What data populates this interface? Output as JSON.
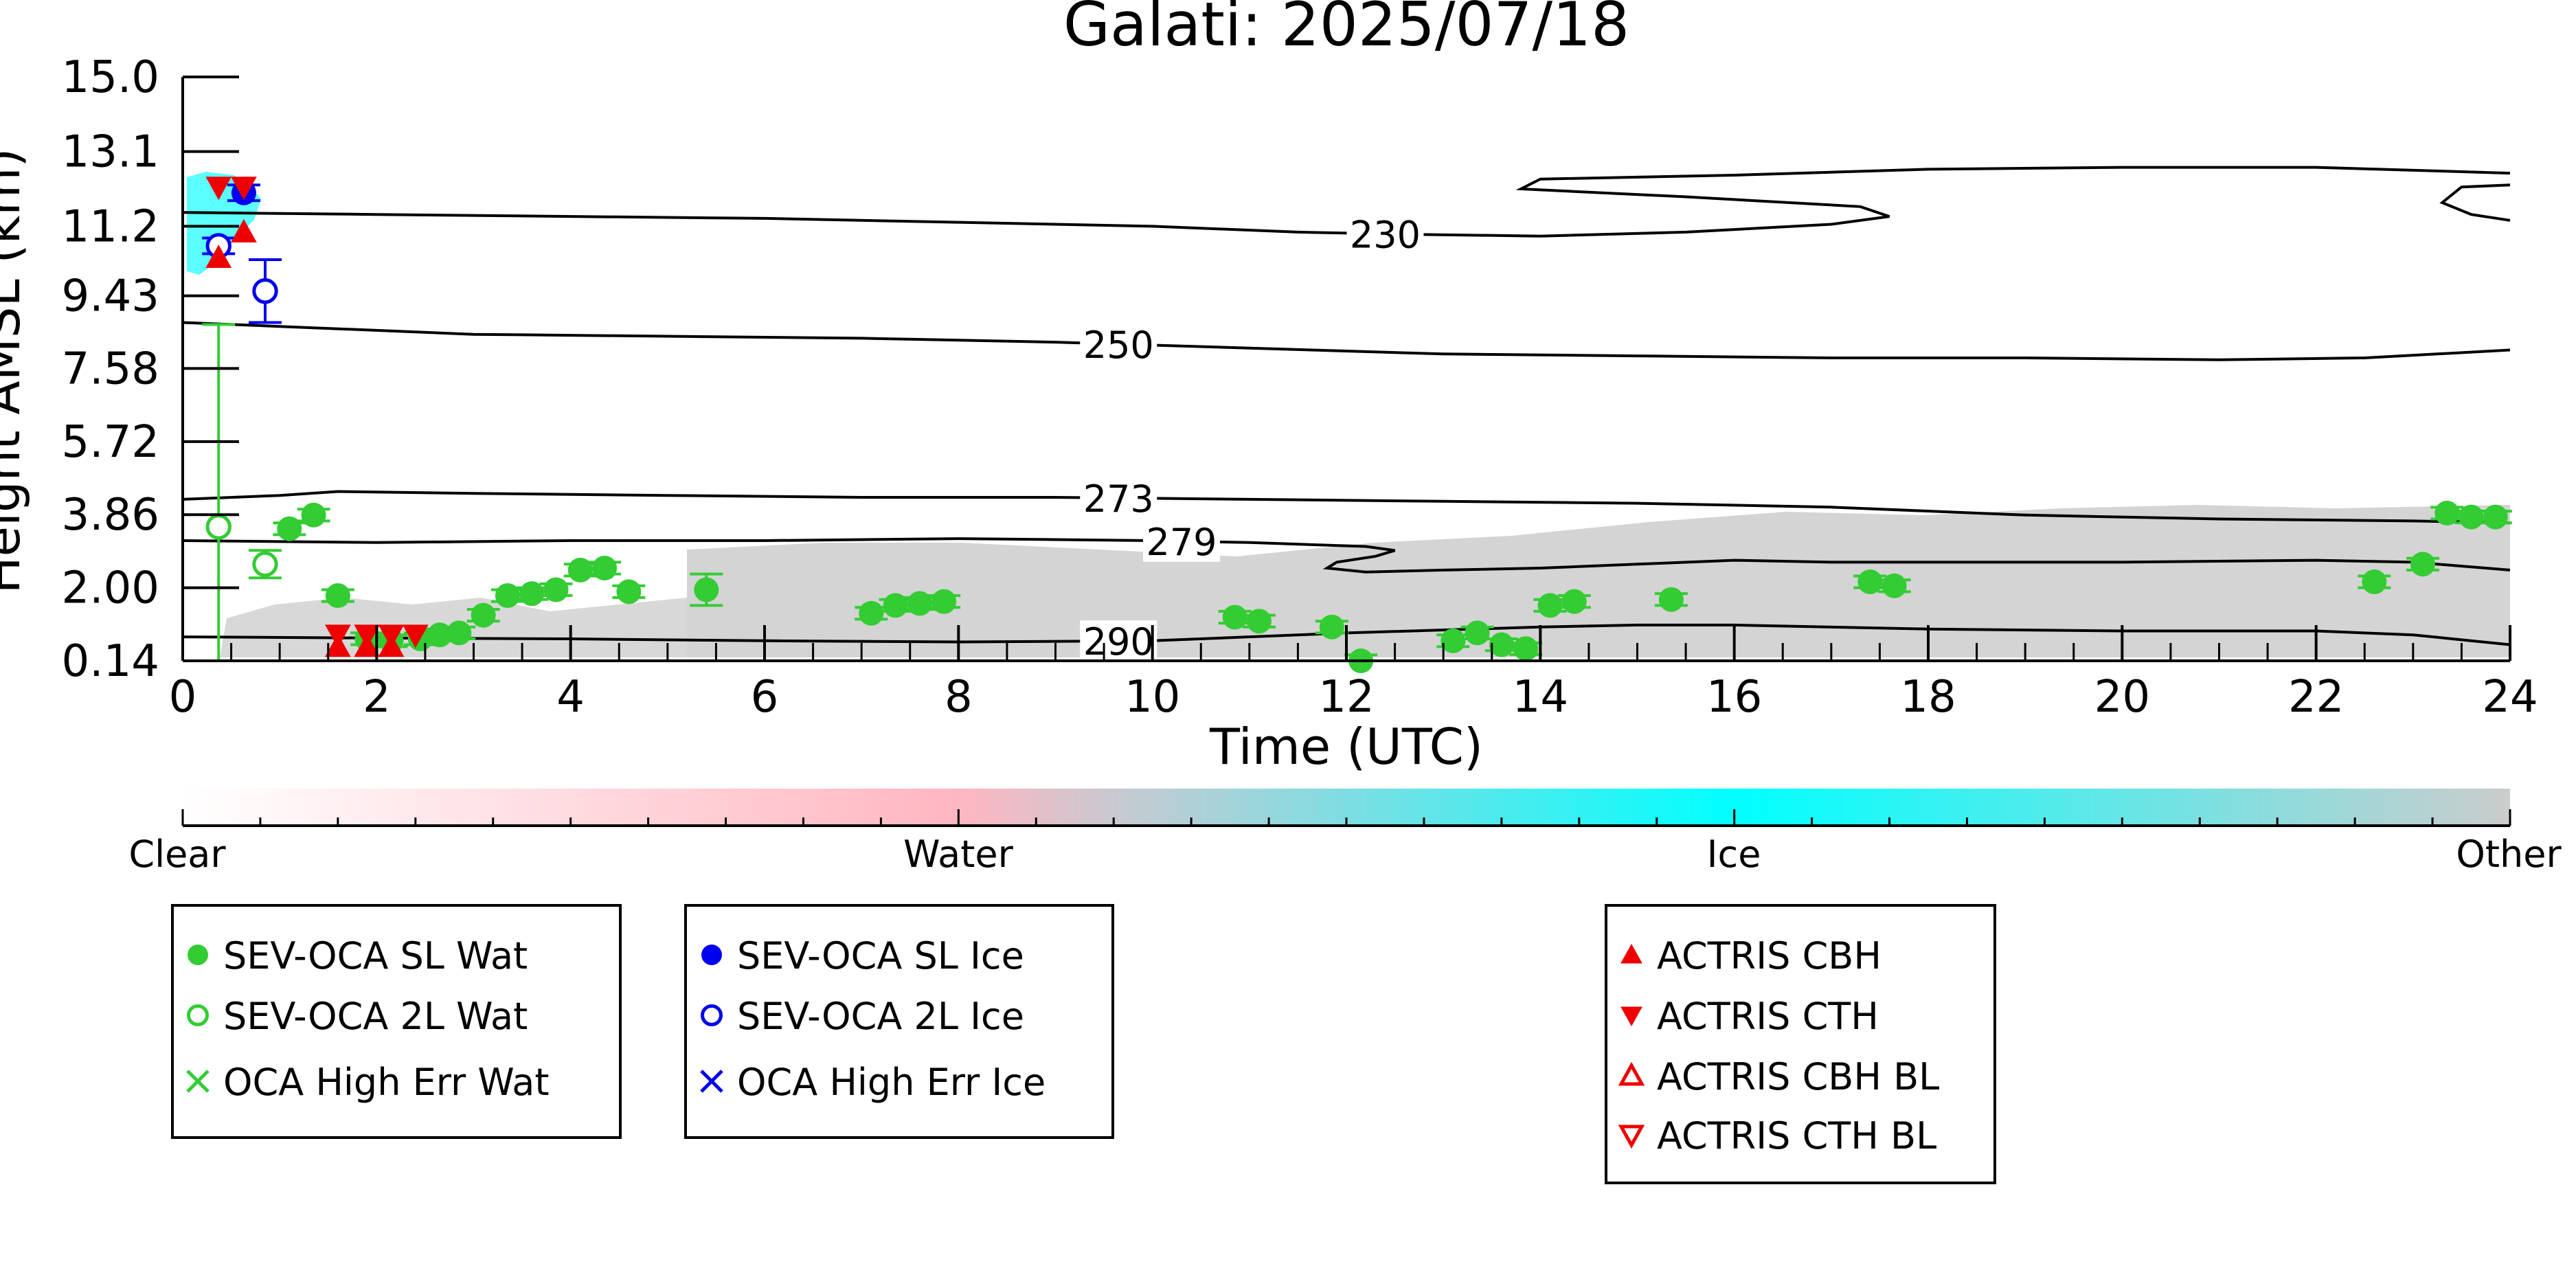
{
  "chart_data": {
    "type": "scatter",
    "title": "Galati: 2025/07/18",
    "xlabel": "Time (UTC)",
    "ylabel": "Height AMSL (km)",
    "xlim": [
      0,
      24
    ],
    "ylim": [
      0.14,
      15.0
    ],
    "x_ticks": [
      "0",
      "2",
      "4",
      "6",
      "8",
      "10",
      "12",
      "14",
      "16",
      "18",
      "20",
      "22",
      "24"
    ],
    "y_ticks": [
      "0.14",
      "2.00",
      "3.86",
      "5.72",
      "7.58",
      "9.43",
      "11.2",
      "13.1",
      "15.0"
    ],
    "colorbar": {
      "labels": [
        "Clear",
        "Water",
        "Ice",
        "Other"
      ],
      "colors": {
        "clear": "#ffffff",
        "water": "#ffb6c1",
        "ice": "#00ffff",
        "other": "#cccccc"
      }
    },
    "temperature_contours": [
      {
        "label": "230",
        "label_x": 12.4,
        "points": [
          [
            0,
            11.55
          ],
          [
            2,
            11.5
          ],
          [
            4,
            11.45
          ],
          [
            6,
            11.4
          ],
          [
            8,
            11.3
          ],
          [
            10,
            11.2
          ],
          [
            11.5,
            11.05
          ],
          [
            12.5,
            11.0
          ],
          [
            14,
            10.95
          ],
          [
            15.5,
            11.05
          ],
          [
            17,
            11.25
          ],
          [
            17.6,
            11.45
          ],
          [
            17.3,
            11.7
          ],
          [
            15.5,
            11.95
          ],
          [
            13.8,
            12.15
          ],
          [
            14,
            12.4
          ],
          [
            16,
            12.5
          ],
          [
            18,
            12.65
          ],
          [
            20,
            12.7
          ],
          [
            22,
            12.7
          ],
          [
            24,
            12.55
          ]
        ]
      },
      {
        "label": "",
        "points": [
          [
            24,
            12.25
          ],
          [
            23.5,
            12.2
          ],
          [
            23.3,
            11.8
          ],
          [
            23.6,
            11.5
          ],
          [
            24,
            11.35
          ]
        ]
      },
      {
        "label": "250",
        "label_x": 9.65,
        "points": [
          [
            0,
            8.75
          ],
          [
            1,
            8.65
          ],
          [
            3,
            8.45
          ],
          [
            5,
            8.4
          ],
          [
            7,
            8.35
          ],
          [
            9,
            8.25
          ],
          [
            11,
            8.1
          ],
          [
            13,
            7.95
          ],
          [
            15,
            7.9
          ],
          [
            17,
            7.85
          ],
          [
            19,
            7.85
          ],
          [
            21,
            7.8
          ],
          [
            22.5,
            7.85
          ],
          [
            24,
            8.05
          ]
        ]
      },
      {
        "label": "273",
        "label_x": 9.65,
        "points": [
          [
            0,
            4.25
          ],
          [
            1,
            4.35
          ],
          [
            1.6,
            4.45
          ],
          [
            3,
            4.4
          ],
          [
            5,
            4.35
          ],
          [
            7,
            4.3
          ],
          [
            9,
            4.3
          ],
          [
            11,
            4.25
          ],
          [
            13,
            4.2
          ],
          [
            15,
            4.15
          ],
          [
            17,
            4.05
          ],
          [
            19,
            3.85
          ],
          [
            21,
            3.75
          ],
          [
            23,
            3.7
          ],
          [
            24,
            3.65
          ]
        ]
      },
      {
        "label": "279",
        "label_x": 10.3,
        "points": [
          [
            0,
            3.2
          ],
          [
            2,
            3.15
          ],
          [
            4,
            3.2
          ],
          [
            6,
            3.2
          ],
          [
            8,
            3.25
          ],
          [
            10,
            3.2
          ],
          [
            11,
            3.15
          ],
          [
            12.2,
            3.05
          ],
          [
            12.5,
            2.95
          ],
          [
            12.3,
            2.8
          ],
          [
            11.9,
            2.65
          ],
          [
            11.8,
            2.5
          ],
          [
            12.2,
            2.4
          ],
          [
            13,
            2.45
          ],
          [
            14,
            2.5
          ],
          [
            15,
            2.6
          ],
          [
            16,
            2.7
          ],
          [
            17,
            2.65
          ],
          [
            18,
            2.65
          ],
          [
            20,
            2.65
          ],
          [
            22,
            2.7
          ],
          [
            23,
            2.65
          ],
          [
            24,
            2.45
          ]
        ]
      },
      {
        "label": "290",
        "label_x": 9.65,
        "points": [
          [
            0,
            0.75
          ],
          [
            2,
            0.72
          ],
          [
            4,
            0.7
          ],
          [
            6,
            0.65
          ],
          [
            8,
            0.62
          ],
          [
            10,
            0.65
          ],
          [
            12,
            0.85
          ],
          [
            14,
            1.0
          ],
          [
            15,
            1.05
          ],
          [
            16,
            1.05
          ],
          [
            18,
            0.95
          ],
          [
            20,
            0.9
          ],
          [
            22,
            0.9
          ],
          [
            23,
            0.8
          ],
          [
            24,
            0.55
          ]
        ]
      }
    ],
    "series": [
      {
        "name": "SEV-OCA SL Wat",
        "color": "#33cc33",
        "marker": "filled-circle",
        "points": [
          [
            1.1,
            3.5,
            0.15
          ],
          [
            1.35,
            3.85,
            0.15
          ],
          [
            1.6,
            1.8,
            0.15
          ],
          [
            1.9,
            0.7,
            0.15
          ],
          [
            2.15,
            0.65,
            0.15
          ],
          [
            2.45,
            0.7,
            0.15
          ],
          [
            2.65,
            0.8,
            0.15
          ],
          [
            2.85,
            0.85,
            0.15
          ],
          [
            3.1,
            1.3,
            0.15
          ],
          [
            3.35,
            1.8,
            0.15
          ],
          [
            3.6,
            1.85,
            0.15
          ],
          [
            3.85,
            1.95,
            0.15
          ],
          [
            4.1,
            2.45,
            0.15
          ],
          [
            4.35,
            2.5,
            0.15
          ],
          [
            4.6,
            1.9,
            0.15
          ],
          [
            5.4,
            1.95,
            0.4
          ],
          [
            7.1,
            1.35,
            0.15
          ],
          [
            7.35,
            1.55,
            0.15
          ],
          [
            7.6,
            1.6,
            0.15
          ],
          [
            7.85,
            1.65,
            0.15
          ],
          [
            10.85,
            1.25,
            0.15
          ],
          [
            11.1,
            1.15,
            0.15
          ],
          [
            11.85,
            1.0,
            0.15
          ],
          [
            12.15,
            0.14,
            0.15
          ],
          [
            13.1,
            0.65,
            0.15
          ],
          [
            13.35,
            0.85,
            0.15
          ],
          [
            13.6,
            0.55,
            0.15
          ],
          [
            13.85,
            0.45,
            0.15
          ],
          [
            14.1,
            1.55,
            0.15
          ],
          [
            14.35,
            1.65,
            0.15
          ],
          [
            15.35,
            1.7,
            0.15
          ],
          [
            17.4,
            2.15,
            0.15
          ],
          [
            17.65,
            2.05,
            0.15
          ],
          [
            22.6,
            2.15,
            0.15
          ],
          [
            23.1,
            2.6,
            0.15
          ],
          [
            23.35,
            3.9,
            0.15
          ],
          [
            23.6,
            3.8,
            0.15
          ],
          [
            23.85,
            3.8,
            0.15
          ]
        ]
      },
      {
        "name": "SEV-OCA 2L Wat",
        "color": "#33cc33",
        "marker": "open-circle",
        "points": [
          [
            0.37,
            3.55,
            5.15
          ],
          [
            0.85,
            2.6,
            0.35
          ]
        ]
      },
      {
        "name": "SEV-OCA SL Ice",
        "color": "#0000ee",
        "marker": "filled-circle",
        "points": [
          [
            0.63,
            12.05,
            0.2
          ]
        ]
      },
      {
        "name": "SEV-OCA 2L Ice",
        "color": "#0000ee",
        "marker": "open-circle",
        "points": [
          [
            0.37,
            10.7,
            0.2
          ],
          [
            0.85,
            9.55,
            0.8
          ]
        ]
      },
      {
        "name": "ACTRIS CBH",
        "color": "#ee0000",
        "marker": "filled-triangle-up",
        "points": [
          [
            0.37,
            10.4
          ],
          [
            0.63,
            11.05
          ],
          [
            1.6,
            0.5
          ],
          [
            1.9,
            0.5
          ],
          [
            2.15,
            0.5
          ]
        ]
      },
      {
        "name": "ACTRIS CTH",
        "color": "#ee0000",
        "marker": "filled-triangle-down",
        "points": [
          [
            0.37,
            12.2
          ],
          [
            0.63,
            12.2
          ],
          [
            1.6,
            0.8
          ],
          [
            1.9,
            0.8
          ],
          [
            2.15,
            0.8
          ],
          [
            2.4,
            0.8
          ]
        ]
      }
    ],
    "legend": [
      {
        "entries": [
          {
            "label": "SEV-OCA SL Wat",
            "marker": "filled-circle",
            "color": "#33cc33"
          },
          {
            "label": "SEV-OCA 2L Wat",
            "marker": "open-circle",
            "color": "#33cc33"
          },
          {
            "label": "OCA High Err Wat",
            "marker": "x",
            "color": "#33cc33"
          }
        ]
      },
      {
        "entries": [
          {
            "label": "SEV-OCA SL Ice",
            "marker": "filled-circle",
            "color": "#0000ee"
          },
          {
            "label": "SEV-OCA 2L Ice",
            "marker": "open-circle",
            "color": "#0000ee"
          },
          {
            "label": "OCA High Err Ice",
            "marker": "x",
            "color": "#0000ee"
          }
        ]
      },
      {
        "entries": [
          {
            "label": "ACTRIS CBH",
            "marker": "filled-triangle-up",
            "color": "#ee0000"
          },
          {
            "label": "ACTRIS CTH",
            "marker": "filled-triangle-down",
            "color": "#ee0000"
          },
          {
            "label": "ACTRIS CBH BL",
            "marker": "open-triangle-up",
            "color": "#ee0000"
          },
          {
            "label": "ACTRIS CTH BL",
            "marker": "open-triangle-down",
            "color": "#ee0000"
          }
        ]
      }
    ]
  }
}
